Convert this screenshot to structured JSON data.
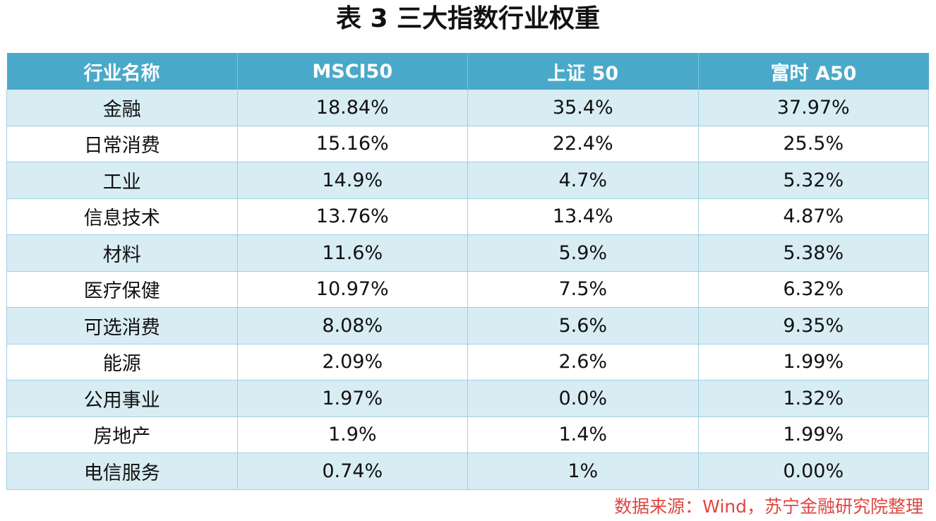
{
  "title": "表 3  三大指数行业权重",
  "table": {
    "header": [
      "行业名称",
      "MSCI50",
      "上证 50",
      "富时 A50"
    ],
    "rows": [
      [
        "金融",
        "18.84%",
        "35.4%",
        "37.97%"
      ],
      [
        "日常消费",
        "15.16%",
        "22.4%",
        "25.5%"
      ],
      [
        "工业",
        "14.9%",
        "4.7%",
        "5.32%"
      ],
      [
        "信息技术",
        "13.76%",
        "13.4%",
        "4.87%"
      ],
      [
        "材料",
        "11.6%",
        "5.9%",
        "5.38%"
      ],
      [
        "医疗保健",
        "10.97%",
        "7.5%",
        "6.32%"
      ],
      [
        "可选消费",
        "8.08%",
        "5.6%",
        "9.35%"
      ],
      [
        "能源",
        "2.09%",
        "2.6%",
        "1.99%"
      ],
      [
        "公用事业",
        "1.97%",
        "0.0%",
        "1.32%"
      ],
      [
        "房地产",
        "1.9%",
        "1.4%",
        "1.99%"
      ],
      [
        "电信服务",
        "0.74%",
        "1%",
        "0.00%"
      ]
    ]
  },
  "source": "数据来源：Wind，苏宁金融研究院整理"
}
